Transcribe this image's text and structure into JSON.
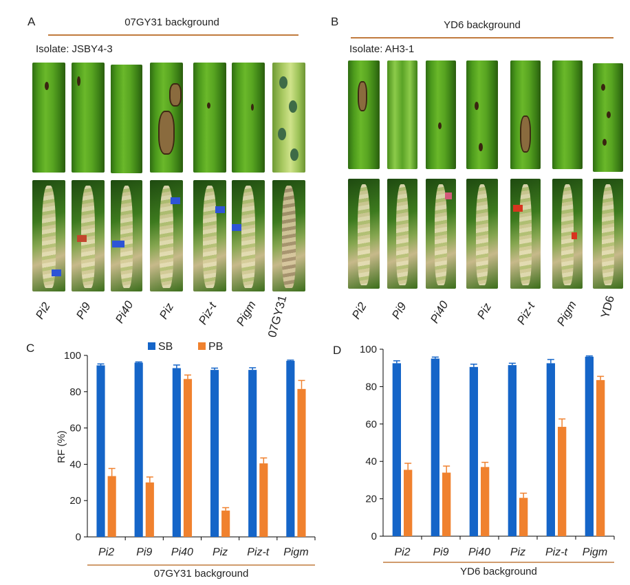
{
  "panels": {
    "a": {
      "label": "A",
      "title": "07GY31 background",
      "isolate": "Isolate: JSBY4-3",
      "genotypes": [
        "Pi2",
        "Pi9",
        "Pi40",
        "Piz",
        "Piz-t",
        "Pigm",
        "07GY31"
      ]
    },
    "b": {
      "label": "B",
      "title": "YD6 background",
      "isolate": "Isolate: AH3-1",
      "genotypes": [
        "Pi2",
        "Pi9",
        "Pi40",
        "Piz",
        "Piz-t",
        "Pigm",
        "YD6"
      ]
    },
    "c": {
      "label": "C"
    },
    "d": {
      "label": "D"
    }
  },
  "colors": {
    "SB": "#1565c8",
    "PB": "#f0812e",
    "rule": "#c07a3c",
    "axis": "#000000"
  },
  "chart_data": [
    {
      "type": "bar",
      "panel": "C",
      "categories": [
        "Pi2",
        "Pi9",
        "Pi40",
        "Piz",
        "Piz-t",
        "Pigm"
      ],
      "series": [
        {
          "name": "SB",
          "values": [
            94.5,
            96,
            93,
            92,
            92,
            97
          ],
          "errors": [
            0.8,
            0.4,
            1.7,
            1.0,
            1.2,
            0.4
          ]
        },
        {
          "name": "PB",
          "values": [
            33.5,
            30,
            87,
            14.5,
            40.5,
            81.5
          ],
          "errors": [
            4.2,
            3.0,
            2.2,
            1.6,
            3.0,
            4.7
          ]
        }
      ],
      "title": "",
      "xlabel": "07GY31 background",
      "ylabel": "RF (%)",
      "ylim": [
        0,
        100
      ],
      "yticks": [
        0,
        20,
        40,
        60,
        80,
        100
      ],
      "legend": "top",
      "grid": false
    },
    {
      "type": "bar",
      "panel": "D",
      "categories": [
        "Pi2",
        "Pi9",
        "Pi40",
        "Piz",
        "Piz-t",
        "Pigm"
      ],
      "series": [
        {
          "name": "SB",
          "values": [
            92.5,
            95,
            90.5,
            91.5,
            92.5,
            96
          ],
          "errors": [
            1.3,
            0.8,
            1.5,
            1.0,
            2.0,
            0.4
          ]
        },
        {
          "name": "PB",
          "values": [
            35.5,
            34,
            37,
            20.5,
            58.5,
            83.5
          ],
          "errors": [
            3.5,
            3.5,
            2.5,
            2.5,
            4.2,
            2.0
          ]
        }
      ],
      "title": "",
      "xlabel": "YD6 background",
      "ylabel": "",
      "ylim": [
        0,
        100
      ],
      "yticks": [
        0,
        20,
        40,
        60,
        80,
        100
      ],
      "legend": "",
      "grid": false
    }
  ]
}
